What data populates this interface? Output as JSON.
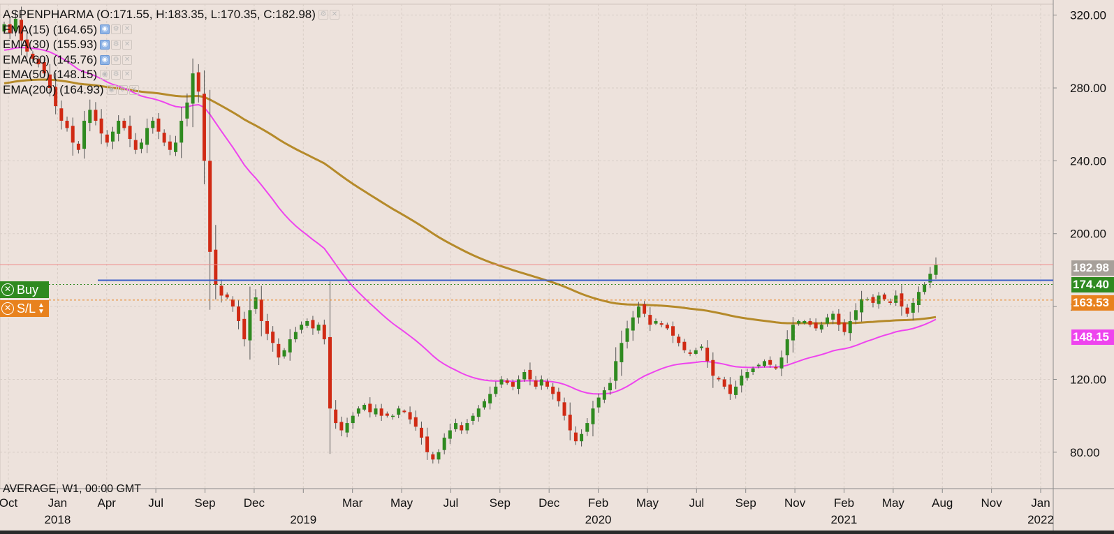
{
  "chart_data": {
    "type": "candlestick",
    "symbol": "ASPENPHARMA",
    "ohlc": {
      "O": 171.55,
      "H": 183.35,
      "L": 170.35,
      "C": 182.98
    },
    "header_text": "ASPENPHARMA (O:171.55, H:183.35, L:170.35, C:182.98)",
    "legend": [
      {
        "label": "EMA(15) (164.65)",
        "visible": true
      },
      {
        "label": "EMA(30) (155.93)",
        "visible": true
      },
      {
        "label": "EMA(60) (145.76)",
        "visible": true
      },
      {
        "label": "EMA(50) (148.15)",
        "visible": false
      },
      {
        "label": "EMA(200) (164.93)",
        "visible": false
      }
    ],
    "footer": "AVERAGE, W1, 00:00 GMT",
    "ylim": [
      60,
      326
    ],
    "y_ticks": [
      80,
      120,
      160,
      200,
      240,
      280,
      320
    ],
    "y_tick_labels": [
      "80.00",
      "120.00",
      "160.00",
      "200.00",
      "240.00",
      "280.00",
      "320.00"
    ],
    "x_ticks": [
      {
        "label": "Oct",
        "year": ""
      },
      {
        "label": "Jan",
        "year": "2018"
      },
      {
        "label": "Apr",
        "year": ""
      },
      {
        "label": "Jul",
        "year": ""
      },
      {
        "label": "Sep",
        "year": ""
      },
      {
        "label": "Dec",
        "year": ""
      },
      {
        "label": "",
        "year": "2019"
      },
      {
        "label": "Mar",
        "year": ""
      },
      {
        "label": "May",
        "year": ""
      },
      {
        "label": "Jul",
        "year": ""
      },
      {
        "label": "Sep",
        "year": ""
      },
      {
        "label": "Dec",
        "year": ""
      },
      {
        "label": "Feb",
        "year": "2020"
      },
      {
        "label": "May",
        "year": ""
      },
      {
        "label": "Jul",
        "year": ""
      },
      {
        "label": "Sep",
        "year": ""
      },
      {
        "label": "Nov",
        "year": ""
      },
      {
        "label": "Feb",
        "year": "2021"
      },
      {
        "label": "May",
        "year": ""
      },
      {
        "label": "Aug",
        "year": ""
      },
      {
        "label": "Nov",
        "year": ""
      },
      {
        "label": "Jan",
        "year": "2022"
      }
    ],
    "closes": [
      315,
      310,
      318,
      306,
      300,
      296,
      293,
      288,
      280,
      270,
      262,
      258,
      250,
      246,
      262,
      268,
      262,
      255,
      250,
      256,
      262,
      258,
      252,
      246,
      250,
      258,
      262,
      256,
      250,
      246,
      250,
      262,
      272,
      288,
      278,
      240,
      190,
      172,
      166,
      165,
      160,
      152,
      142,
      158,
      165,
      152,
      145,
      140,
      132,
      136,
      142,
      146,
      150,
      152,
      148,
      150,
      142,
      104,
      96,
      92,
      96,
      100,
      104,
      106,
      102,
      104,
      100,
      100,
      100,
      104,
      102,
      98,
      94,
      88,
      80,
      76,
      80,
      88,
      92,
      96,
      92,
      96,
      100,
      104,
      108,
      112,
      116,
      120,
      118,
      116,
      120,
      124,
      120,
      116,
      120,
      116,
      112,
      108,
      100,
      92,
      86,
      90,
      96,
      104,
      110,
      114,
      118,
      130,
      140,
      148,
      154,
      160,
      156,
      150,
      152,
      150,
      148,
      144,
      140,
      136,
      134,
      136,
      138,
      130,
      122,
      120,
      116,
      112,
      116,
      122,
      124,
      126,
      128,
      130,
      128,
      126,
      132,
      142,
      150,
      152,
      152,
      150,
      148,
      150,
      154,
      156,
      150,
      146,
      152,
      158,
      164,
      164,
      162,
      166,
      164,
      162,
      166,
      160,
      156,
      162,
      168,
      172,
      178,
      183
    ],
    "ema_magenta": {
      "name": "EMA(50)",
      "last": 148.15
    },
    "ema_gold": {
      "name": "EMA(200)",
      "last": 164.93
    },
    "last_price": 182.98,
    "level_blue": 174.4,
    "level_sl": 163.53,
    "price_labels": [
      "182.98",
      "174.40",
      "163.53",
      "148.15"
    ],
    "colors": {
      "background": "#ede2dc",
      "up": "#2f8a20",
      "down": "#d02a14",
      "ema_magenta": "#ee44ee",
      "ema_gold": "#b58a2a",
      "blue_line": "#3a5fc8",
      "sl": "#e8821e",
      "last_price_line": "#f08a8a"
    }
  },
  "orders": {
    "buy_label": "Buy",
    "sl_label": "S/L"
  }
}
